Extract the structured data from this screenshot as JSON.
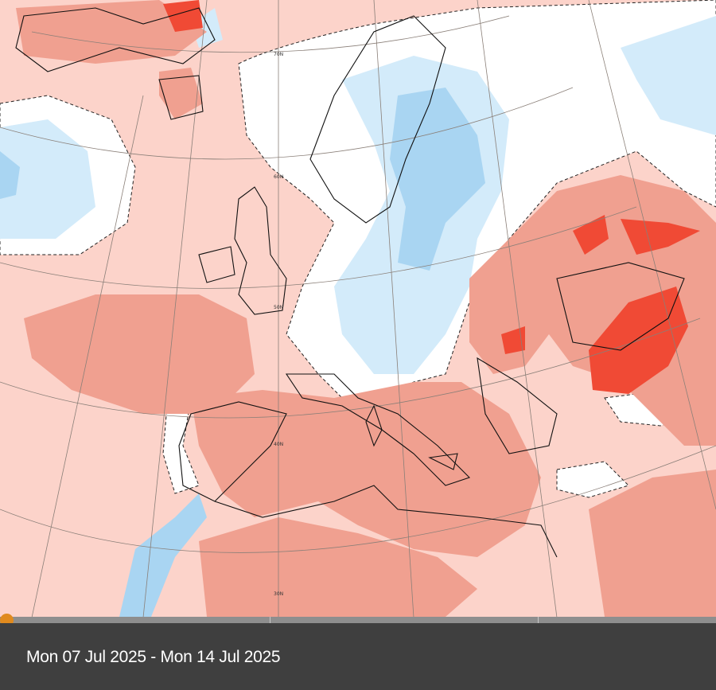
{
  "map": {
    "latitude_labels": [
      "70N",
      "60N",
      "50N",
      "40N",
      "30N"
    ],
    "colors": {
      "warm_light": "#fcd3ca",
      "warm_mid": "#f0a090",
      "warm_strong": "#f04a35",
      "neutral": "#ffffff",
      "cool_light": "#d3ebfa",
      "cool_mid": "#a9d5f2"
    }
  },
  "timeline": {
    "date_range": "Mon 07 Jul 2025 - Mon 14 Jul 2025",
    "position": 0,
    "accent_color": "#e08a1e"
  }
}
